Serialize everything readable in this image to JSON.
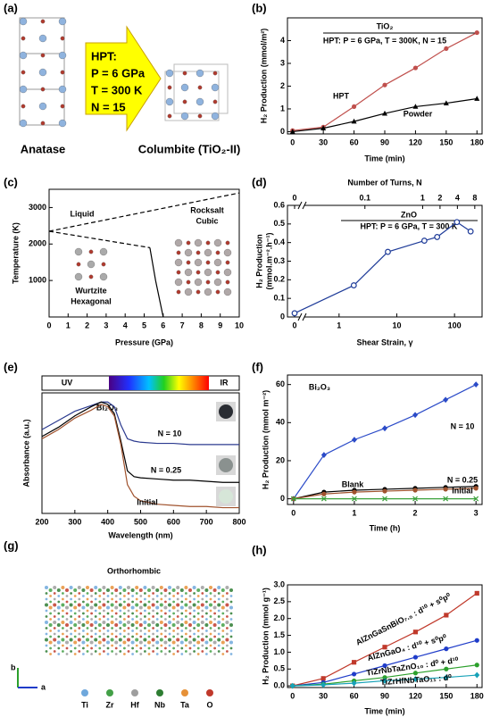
{
  "figure": {
    "a": {
      "label": "(a)",
      "hpt": [
        "HPT:",
        "P = 6 GPa",
        "T = 300 K",
        "N = 15"
      ],
      "left": "Anatase",
      "right": "Columbite (TiO₂-II)"
    },
    "g": {
      "label": "(g)",
      "title": "Orthorhombic",
      "axes": [
        "b",
        "a"
      ],
      "elements": [
        {
          "name": "Ti",
          "color": "#6fa8dc"
        },
        {
          "name": "Zr",
          "color": "#43a047"
        },
        {
          "name": "Hf",
          "color": "#9e9e9e"
        },
        {
          "name": "Nb",
          "color": "#2e7d32"
        },
        {
          "name": "Ta",
          "color": "#e69138"
        },
        {
          "name": "O",
          "color": "#c0392b"
        }
      ]
    }
  },
  "chart_data": [
    {
      "type": "line",
      "panel_label": "(b)",
      "annotations": [
        "TiO₂",
        "HPT: P = 6 GPa, T = 300K, N = 15"
      ],
      "xlabel": "Time (min)",
      "ylabel": "H₂ Production (mmol/m²)",
      "x": [
        0,
        30,
        60,
        90,
        120,
        150,
        180
      ],
      "xlim": [
        -5,
        185
      ],
      "xticks": [
        0,
        30,
        60,
        90,
        120,
        150,
        180
      ],
      "ylim": [
        -0.1,
        5
      ],
      "yticks": [
        0,
        1,
        2,
        3,
        4
      ],
      "series": [
        {
          "name": "HPT",
          "color": "#c0504d",
          "marker": "circle",
          "values": [
            0.05,
            0.2,
            1.1,
            2.05,
            2.8,
            3.65,
            4.35
          ]
        },
        {
          "name": "Powder",
          "color": "#000000",
          "marker": "triangle",
          "values": [
            0.0,
            0.15,
            0.45,
            0.8,
            1.1,
            1.25,
            1.45
          ]
        }
      ]
    },
    {
      "type": "phase",
      "panel_label": "(c)",
      "annotations": [
        "Liquid",
        "Wurtzite",
        "Hexagonal",
        "Rocksalt",
        "Cubic"
      ],
      "xlabel": "Pressure (GPa)",
      "ylabel": "Temperature (K)",
      "xlim": [
        0,
        10
      ],
      "xticks": [
        0,
        1,
        2,
        3,
        4,
        5,
        6,
        7,
        8,
        9,
        10
      ],
      "ylim": [
        0,
        3500
      ],
      "yticks": [
        1000,
        2000,
        3000
      ],
      "series": [
        {
          "style": "dashed",
          "color": "#000000",
          "marker": "none",
          "x": [
            0,
            10
          ],
          "values": [
            2350,
            3400
          ]
        },
        {
          "style": "dashed",
          "color": "#000000",
          "marker": "none",
          "x": [
            0,
            5.3
          ],
          "values": [
            2350,
            1900
          ]
        },
        {
          "style": "solid",
          "color": "#000000",
          "marker": "none",
          "x": [
            5.3,
            5.6,
            6
          ],
          "values": [
            1900,
            1000,
            0
          ]
        }
      ]
    },
    {
      "type": "line",
      "panel_label": "(d)",
      "annotations": [
        "ZnO",
        "HPT: P = 6 GPa, T = 300 K"
      ],
      "xlabel": "Shear Strain, γ",
      "x2label": "Number of Turns, N",
      "ylabel": [
        "H₂ Production",
        "(mmol.m⁻².h⁻¹)"
      ],
      "xscale": "log",
      "x_axis_break": true,
      "xlim": [
        0.3,
        300
      ],
      "xticks": [
        0,
        1,
        10,
        100
      ],
      "x2lim": [
        0.0107,
        10.7
      ],
      "x2ticks": [
        0,
        0.1,
        1,
        2,
        4,
        8
      ],
      "ylim": [
        0,
        0.6
      ],
      "yticks": [
        0,
        0.1,
        0.2,
        0.3,
        0.4,
        0.5,
        0.6
      ],
      "x": [
        0,
        1.8,
        7,
        30,
        50,
        110,
        190
      ],
      "series": [
        {
          "color": "#1f3c99",
          "marker": "circle-open",
          "values": [
            0.02,
            0.17,
            0.35,
            0.41,
            0.43,
            0.51,
            0.46
          ]
        }
      ]
    },
    {
      "type": "line",
      "panel_label": "(e)",
      "annotations": [
        "UV",
        "IR",
        "Bi₂O₃"
      ],
      "xlabel": "Wavelength (nm)",
      "ylabel": "Absorbance (a.u.)",
      "x": [
        200,
        250,
        300,
        350,
        380,
        400,
        420,
        440,
        460,
        480,
        500,
        550,
        600,
        650,
        700,
        750,
        800
      ],
      "xlim": [
        200,
        800
      ],
      "xticks": [
        200,
        300,
        400,
        500,
        600,
        700,
        800
      ],
      "ylim": [
        -0.05,
        1.0
      ],
      "yticks": [],
      "series": [
        {
          "name": "N = 10",
          "color": "#2b3a8f",
          "marker": "none",
          "values": [
            0.68,
            0.76,
            0.84,
            0.89,
            0.92,
            0.92,
            0.88,
            0.72,
            0.6,
            0.58,
            0.57,
            0.56,
            0.56,
            0.55,
            0.55,
            0.55,
            0.55
          ]
        },
        {
          "name": "N = 0.25",
          "color": "#000000",
          "marker": "none",
          "values": [
            0.62,
            0.7,
            0.8,
            0.88,
            0.92,
            0.9,
            0.82,
            0.58,
            0.32,
            0.27,
            0.26,
            0.25,
            0.24,
            0.24,
            0.23,
            0.22,
            0.22
          ]
        },
        {
          "name": "Initial",
          "color": "#a0522d",
          "marker": "none",
          "values": [
            0.6,
            0.68,
            0.78,
            0.85,
            0.9,
            0.88,
            0.8,
            0.55,
            0.2,
            0.1,
            0.06,
            0.03,
            0.02,
            0.01,
            0.01,
            0.0,
            0.0
          ]
        }
      ]
    },
    {
      "type": "line",
      "panel_label": "(f)",
      "annotations": [
        "Bi₂O₃"
      ],
      "xlabel": "Time (h)",
      "ylabel": "H₂ Production (mmol m⁻²)",
      "x": [
        0,
        0.5,
        1,
        1.5,
        2,
        2.5,
        3
      ],
      "xlim": [
        -0.1,
        3.1
      ],
      "xticks": [
        0,
        1,
        2,
        3
      ],
      "ylim": [
        -3,
        65
      ],
      "yticks": [
        0,
        20,
        40,
        60
      ],
      "series": [
        {
          "name": "N = 10",
          "color": "#2b4bc8",
          "marker": "diamond",
          "values": [
            0,
            23,
            31,
            37,
            44,
            52,
            60
          ]
        },
        {
          "name": "N = 0.25",
          "color": "#000000",
          "marker": "circle",
          "values": [
            0,
            3.5,
            4.5,
            5,
            5.5,
            6,
            6.5
          ]
        },
        {
          "name": "Initial",
          "color": "#a0522d",
          "marker": "circle",
          "values": [
            0,
            2.5,
            3.5,
            4,
            4.5,
            5,
            5.5
          ]
        },
        {
          "name": "Blank",
          "color": "#3aa03a",
          "marker": "x",
          "values": [
            0,
            0,
            0,
            0,
            0,
            0,
            0
          ]
        }
      ]
    },
    {
      "type": "line",
      "panel_label": "(h)",
      "xlabel": "Time (min)",
      "ylabel": "H₂ Production (mmol g⁻¹)",
      "x": [
        0,
        30,
        60,
        90,
        120,
        150,
        180
      ],
      "xlim": [
        -5,
        185
      ],
      "xticks": [
        0,
        30,
        60,
        90,
        120,
        150,
        180
      ],
      "ylim": [
        -0.05,
        3.0
      ],
      "yticks": [
        {
          "value": 0,
          "label": "0.0"
        },
        {
          "value": 0.5,
          "label": "0.5"
        },
        {
          "value": 1,
          "label": "1.0"
        },
        {
          "value": 1.5,
          "label": "1.5"
        },
        {
          "value": 2,
          "label": "2.0"
        },
        {
          "value": 2.5,
          "label": "2.5"
        },
        {
          "value": 3,
          "label": "3.0"
        }
      ],
      "series": [
        {
          "name": "AlZnGaSnBiO₇.₅ : d¹⁰ + s⁰p⁰",
          "color": "#c0392b",
          "marker": "square",
          "values": [
            0,
            0.22,
            0.7,
            1.15,
            1.6,
            2.1,
            2.75
          ]
        },
        {
          "name": "AlZnGaO₄ : d¹⁰ + s⁰p⁰",
          "color": "#1f3cc9",
          "marker": "circle",
          "values": [
            0,
            0.1,
            0.35,
            0.6,
            0.85,
            1.1,
            1.35
          ]
        },
        {
          "name": "TiZrNbTaZnO₁₀ : d⁰ + d¹⁰",
          "color": "#2ca02c",
          "marker": "circle",
          "values": [
            0,
            0.05,
            0.15,
            0.25,
            0.38,
            0.5,
            0.62
          ]
        },
        {
          "name": "TiZrHfNbTaO₁₁ : d⁰",
          "color": "#17a2b8",
          "marker": "diamond",
          "values": [
            0,
            0.03,
            0.08,
            0.15,
            0.2,
            0.25,
            0.32
          ]
        }
      ]
    }
  ]
}
